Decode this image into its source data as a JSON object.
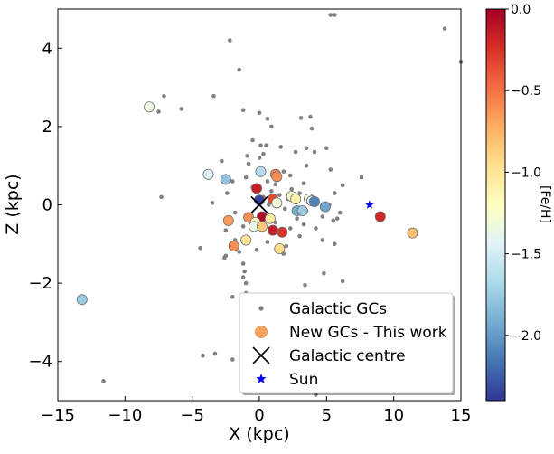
{
  "chart_data": {
    "type": "scatter",
    "xlabel": "X (kpc)",
    "ylabel": "Z (kpc)",
    "xlim": [
      -15,
      15
    ],
    "ylim": [
      -5,
      5
    ],
    "xticks": [
      -15,
      -10,
      -5,
      0,
      5,
      10,
      15
    ],
    "xtick_labels": [
      "−15",
      "−10",
      "−5",
      "0",
      "5",
      "10",
      "15"
    ],
    "yticks": [
      -4,
      -2,
      0,
      2,
      4
    ],
    "ytick_labels": [
      "−4",
      "−2",
      "0",
      "2",
      "4"
    ],
    "grid": false,
    "legend_position": "lower-right",
    "colorbar": {
      "label": "[Fe/H]",
      "range": [
        -2.4,
        0.0
      ],
      "colormap": "RdYlBu_r",
      "ticks": [
        0.0,
        -0.5,
        -1.0,
        -1.5,
        -2.0
      ],
      "tick_labels": [
        "0.0",
        "−0.5",
        "−1.0",
        "−1.5",
        "−2.0"
      ],
      "stops": [
        "#313695",
        "#4575b4",
        "#74add1",
        "#abd9e9",
        "#e0f3f8",
        "#ffffbf",
        "#fee090",
        "#fdae61",
        "#f46d43",
        "#d73027",
        "#a50026"
      ]
    },
    "series": [
      {
        "name": "Galactic GCs",
        "marker": "small-dot",
        "color": "#808080",
        "points": [
          [
            5.3,
            4.85
          ],
          [
            5.6,
            4.85
          ],
          [
            13.8,
            4.5
          ],
          [
            15.0,
            3.65
          ],
          [
            -2.2,
            4.2
          ],
          [
            -1.5,
            3.45
          ],
          [
            -7.1,
            2.78
          ],
          [
            -3.4,
            2.78
          ],
          [
            -7.5,
            2.38
          ],
          [
            -5.8,
            2.45
          ],
          [
            -1.2,
            2.42
          ],
          [
            0.0,
            2.35
          ],
          [
            0.6,
            2.2
          ],
          [
            3.1,
            2.22
          ],
          [
            3.8,
            2.25
          ],
          [
            0.9,
            2.0
          ],
          [
            3.9,
            1.95
          ],
          [
            -0.5,
            1.65
          ],
          [
            0.1,
            1.52
          ],
          [
            0.5,
            1.52
          ],
          [
            1.6,
            1.48
          ],
          [
            3.5,
            1.45
          ],
          [
            5.0,
            1.45
          ],
          [
            2.7,
            1.35
          ],
          [
            0.3,
            1.3
          ],
          [
            4.1,
            1.35
          ],
          [
            -0.9,
            1.25
          ],
          [
            0.0,
            1.2
          ],
          [
            -2.8,
            1.12
          ],
          [
            -0.8,
            1.05
          ],
          [
            3.5,
            1.0
          ],
          [
            1.8,
            0.85
          ],
          [
            5.3,
            0.9
          ],
          [
            2.3,
            0.75
          ],
          [
            -1.0,
            0.7
          ],
          [
            7.6,
            0.7
          ],
          [
            0.6,
            0.6
          ],
          [
            -2.0,
            0.6
          ],
          [
            1.2,
            0.52
          ],
          [
            3.3,
            0.55
          ],
          [
            6.2,
            0.5
          ],
          [
            -0.5,
            0.45
          ],
          [
            2.4,
            0.4
          ],
          [
            0.9,
            0.35
          ],
          [
            -2.4,
            0.3
          ],
          [
            3.0,
            0.3
          ],
          [
            5.6,
            0.3
          ],
          [
            1.5,
            0.25
          ],
          [
            -7.3,
            0.2
          ],
          [
            0.3,
            0.2
          ],
          [
            2.1,
            0.15
          ],
          [
            4.0,
            0.1
          ],
          [
            -3.5,
            0.05
          ],
          [
            0.7,
            0.0
          ],
          [
            5.2,
            0.0
          ],
          [
            1.9,
            -0.1
          ],
          [
            3.5,
            -0.15
          ],
          [
            -1.8,
            -0.2
          ],
          [
            6.0,
            -0.2
          ],
          [
            0.2,
            -0.3
          ],
          [
            2.8,
            -0.35
          ],
          [
            4.7,
            -0.3
          ],
          [
            5.8,
            -0.35
          ],
          [
            -2.3,
            -0.45
          ],
          [
            1.2,
            -0.45
          ],
          [
            3.3,
            -0.5
          ],
          [
            5.5,
            -0.4
          ],
          [
            -1.2,
            -0.55
          ],
          [
            0.3,
            -0.6
          ],
          [
            2.3,
            -0.6
          ],
          [
            4.2,
            -0.6
          ],
          [
            -2.5,
            -0.65
          ],
          [
            1.0,
            -0.7
          ],
          [
            3.0,
            -0.8
          ],
          [
            -1.8,
            -0.9
          ],
          [
            0.6,
            -0.95
          ],
          [
            4.7,
            -0.9
          ],
          [
            -4.4,
            -1.1
          ],
          [
            2.0,
            -1.05
          ],
          [
            -0.2,
            -1.15
          ],
          [
            5.6,
            -1.0
          ],
          [
            -2.5,
            -1.3
          ],
          [
            -1.5,
            -1.2
          ],
          [
            1.8,
            -1.25
          ],
          [
            -2.6,
            -1.35
          ],
          [
            -1.2,
            -1.5
          ],
          [
            -1.1,
            -1.7
          ],
          [
            4.8,
            -1.75
          ],
          [
            -1.2,
            -1.85
          ],
          [
            6.2,
            -1.95
          ],
          [
            -1.0,
            -2.0
          ],
          [
            3.4,
            -2.05
          ],
          [
            -1.0,
            -2.25
          ],
          [
            -2.0,
            -2.35
          ],
          [
            -4.2,
            -3.85
          ],
          [
            -3.3,
            -3.8
          ],
          [
            -2.0,
            -3.95
          ],
          [
            -11.6,
            -4.5
          ],
          [
            4.2,
            -4.85
          ]
        ]
      },
      {
        "name": "New GCs - This work",
        "marker": "large-circle",
        "points": [
          [
            -8.2,
            2.5,
            -1.35
          ],
          [
            -3.8,
            0.78,
            -1.45
          ],
          [
            -2.5,
            0.65,
            -1.8
          ],
          [
            0.1,
            0.85,
            -1.65
          ],
          [
            1.2,
            0.78,
            -0.55
          ],
          [
            1.3,
            0.72,
            -0.6
          ],
          [
            -0.2,
            0.42,
            -0.15
          ],
          [
            0.0,
            0.12,
            -2.35
          ],
          [
            1.0,
            0.15,
            -0.35
          ],
          [
            1.3,
            0.05,
            -1.3
          ],
          [
            2.4,
            0.22,
            -1.25
          ],
          [
            2.7,
            0.15,
            -1.1
          ],
          [
            3.7,
            0.15,
            -1.3
          ],
          [
            3.9,
            0.1,
            -1.5
          ],
          [
            4.1,
            0.08,
            -2.1
          ],
          [
            4.9,
            -0.05,
            -1.95
          ],
          [
            0.2,
            -0.3,
            -0.05
          ],
          [
            2.8,
            -0.15,
            -1.9
          ],
          [
            3.2,
            -0.15,
            -1.75
          ],
          [
            -0.8,
            -0.32,
            -0.6
          ],
          [
            0.8,
            -0.35,
            -1.05
          ],
          [
            -0.3,
            -0.45,
            -1.2
          ],
          [
            -2.3,
            -0.4,
            -0.65
          ],
          [
            -0.4,
            -0.55,
            -1.35
          ],
          [
            0.2,
            -0.55,
            -0.85
          ],
          [
            1.0,
            -0.65,
            -0.15
          ],
          [
            1.7,
            -0.7,
            -0.25
          ],
          [
            -1.0,
            -0.9,
            -1.0
          ],
          [
            -1.9,
            -1.05,
            -0.6
          ],
          [
            1.5,
            -1.12,
            -0.95
          ],
          [
            9.0,
            -0.3,
            -0.2
          ],
          [
            11.4,
            -0.72,
            -0.8
          ],
          [
            -13.2,
            -2.42,
            -1.75
          ]
        ]
      },
      {
        "name": "Galactic centre",
        "marker": "x",
        "color": "#000000",
        "points": [
          [
            0,
            0
          ]
        ]
      },
      {
        "name": "Sun",
        "marker": "star",
        "color": "#0000ff",
        "points": [
          [
            8.2,
            0.0
          ]
        ]
      }
    ]
  }
}
